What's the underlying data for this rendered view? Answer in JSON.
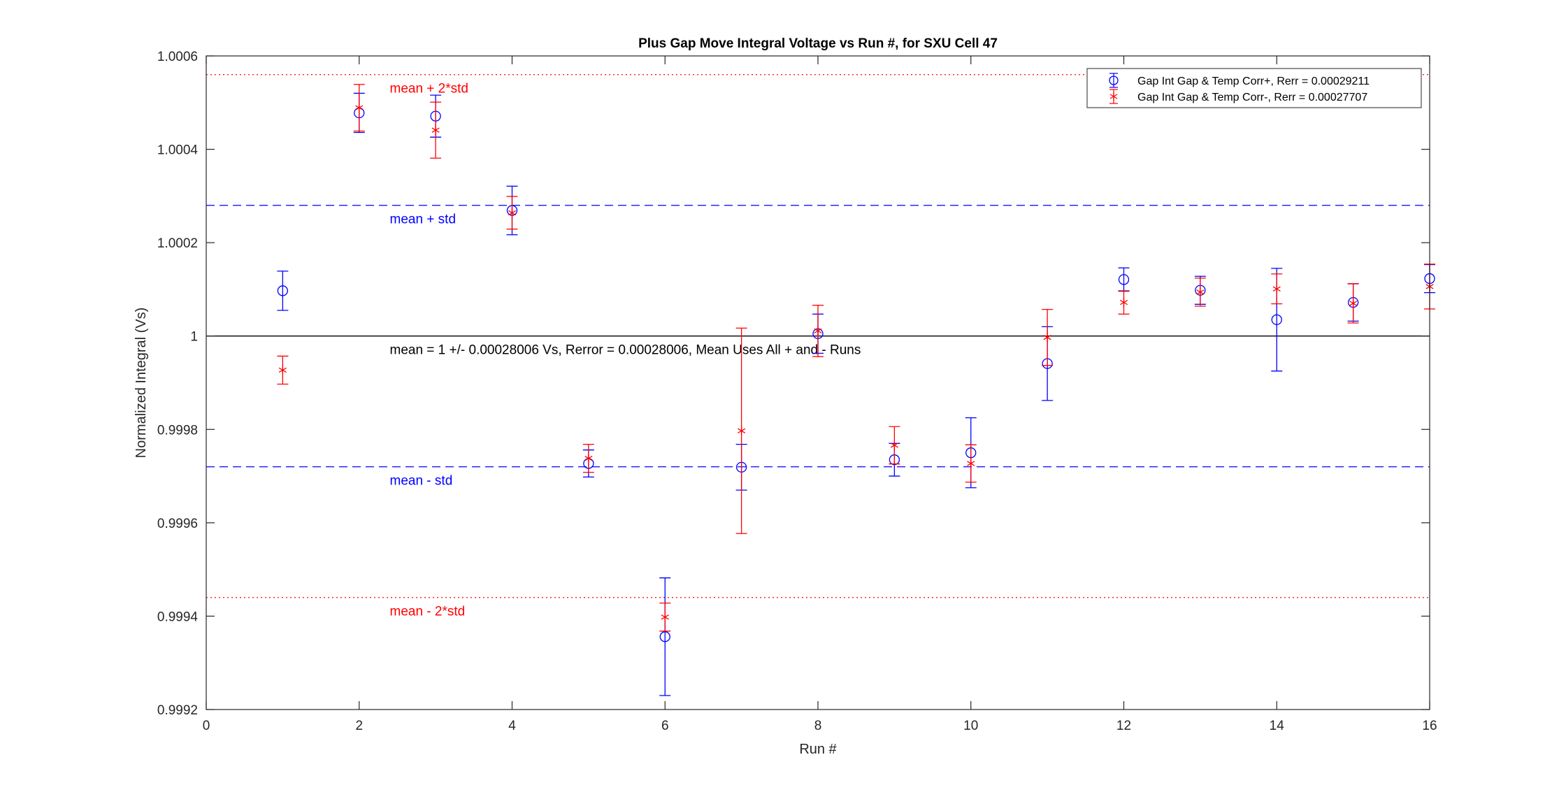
{
  "chart_data": {
    "type": "scatter",
    "title": "Plus Gap Move Integral Voltage vs Run #, for SXU Cell 47",
    "xlabel": "Run #",
    "ylabel": "Normalized Integral (Vs)",
    "xlim": [
      0,
      16
    ],
    "ylim": [
      0.9992,
      1.0006
    ],
    "xticks": [
      "0",
      "2",
      "4",
      "6",
      "8",
      "10",
      "12",
      "14",
      "16"
    ],
    "yticks": [
      "0.9992",
      "0.9994",
      "0.9996",
      "0.9998",
      "1",
      "1.0002",
      "1.0004",
      "1.0006"
    ],
    "legend_position": "top-right",
    "grid": false,
    "series": [
      {
        "name": "Gap Int Gap & Temp Corr+, Rerr = 0.00029211",
        "marker": "circle",
        "color": "#0000ff",
        "x": [
          1,
          2,
          3,
          4,
          5,
          6,
          7,
          8,
          9,
          10,
          11,
          12,
          13,
          14,
          15,
          16
        ],
        "y": [
          1.000097,
          1.000478,
          1.000471,
          1.000269,
          0.999727,
          0.999356,
          0.999719,
          1.000005,
          0.999735,
          0.99975,
          0.999941,
          1.000121,
          1.000098,
          1.000035,
          1.000072,
          1.000123
        ],
        "err": [
          4.2e-05,
          4.2e-05,
          4.5e-05,
          5.2e-05,
          2.9e-05,
          0.000126,
          4.9e-05,
          4.2e-05,
          3.5e-05,
          7.5e-05,
          7.9e-05,
          2.5e-05,
          3e-05,
          0.00011,
          4e-05,
          3e-05
        ]
      },
      {
        "name": "Gap Int Gap & Temp  Corr-, Rerr = 0.00027707",
        "marker": "asterisk",
        "color": "#ff0000",
        "x": [
          1,
          2,
          3,
          4,
          5,
          6,
          7,
          8,
          9,
          10,
          11,
          12,
          13,
          14,
          15,
          16
        ],
        "y": [
          0.999927,
          1.000489,
          1.000441,
          1.000264,
          0.999738,
          0.999398,
          0.999797,
          1.000011,
          0.999766,
          0.999727,
          0.999997,
          1.000072,
          1.000094,
          1.000101,
          1.00007,
          1.000106
        ],
        "err": [
          3e-05,
          5e-05,
          6e-05,
          3.5e-05,
          3e-05,
          3e-05,
          0.00022,
          5.5e-05,
          4e-05,
          4e-05,
          6e-05,
          2.5e-05,
          3e-05,
          3.2e-05,
          4.2e-05,
          4.8e-05
        ]
      }
    ],
    "reference_lines": [
      {
        "y": 1.00056,
        "style": "dotted",
        "color": "#ff0000",
        "label": "mean + 2*std"
      },
      {
        "y": 1.00028,
        "style": "dashed",
        "color": "#0000ff",
        "label": "mean + std"
      },
      {
        "y": 1.0,
        "style": "solid",
        "color": "#000000",
        "label": "mean = 1 +/- 0.00028006 Vs, Rerror = 0.00028006, Mean Uses All + and - Runs"
      },
      {
        "y": 0.99972,
        "style": "dashed",
        "color": "#0000ff",
        "label": "mean - std"
      },
      {
        "y": 0.99944,
        "style": "dotted",
        "color": "#ff0000",
        "label": "mean - 2*std"
      }
    ]
  }
}
